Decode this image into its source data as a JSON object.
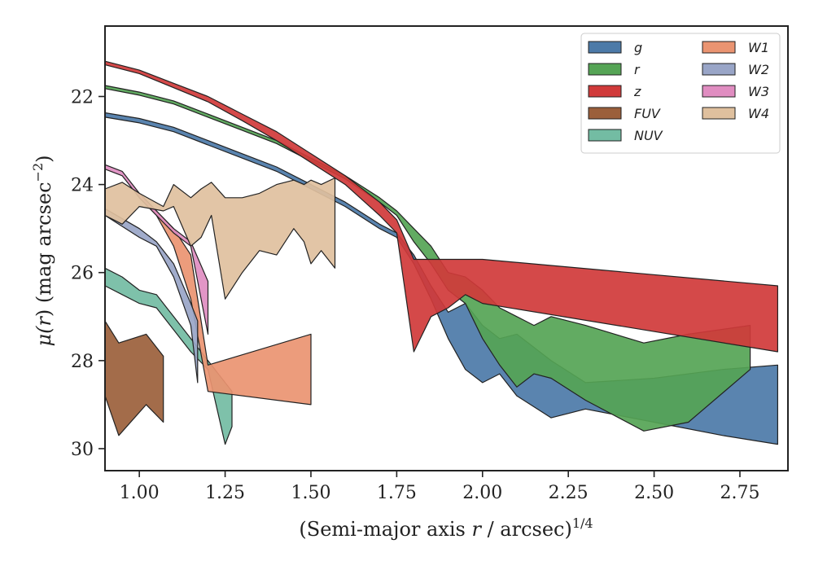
{
  "chart_data": {
    "type": "area",
    "xlabel_parts": [
      "(Semi-major axis ",
      "r",
      " / arcsec)",
      "1/4"
    ],
    "ylabel_parts": [
      "μ(",
      "r",
      ") (mag arcsec",
      "−2",
      ")"
    ],
    "xlim": [
      0.9,
      2.89
    ],
    "ylim": [
      30.5,
      20.4
    ],
    "y_inverted": true,
    "xticks": [
      1.0,
      1.25,
      1.5,
      1.75,
      2.0,
      2.25,
      2.5,
      2.75
    ],
    "xtick_labels": [
      "1.00",
      "1.25",
      "1.50",
      "1.75",
      "2.00",
      "2.25",
      "2.50",
      "2.75"
    ],
    "yticks": [
      22,
      24,
      26,
      28,
      30
    ],
    "ytick_labels": [
      "22",
      "24",
      "26",
      "28",
      "30"
    ],
    "grid": false,
    "legend": {
      "placement": "top-right",
      "columns": 2
    },
    "series": [
      {
        "name": "g",
        "color": "#4c7aa8",
        "x": [
          0.9,
          1.0,
          1.1,
          1.2,
          1.3,
          1.4,
          1.5,
          1.6,
          1.7,
          1.75,
          1.8,
          1.85,
          1.9,
          1.95,
          2.0,
          2.05,
          2.1,
          2.2,
          2.3,
          2.5,
          2.7,
          2.86
        ],
        "lower": [
          22.37,
          22.5,
          22.7,
          23.0,
          23.3,
          23.6,
          24.0,
          24.4,
          24.9,
          25.1,
          25.6,
          26.3,
          26.9,
          26.7,
          27.2,
          27.5,
          27.4,
          28.0,
          28.5,
          28.4,
          28.2,
          28.1
        ],
        "upper": [
          22.47,
          22.6,
          22.8,
          23.1,
          23.4,
          23.7,
          24.1,
          24.5,
          25.0,
          25.2,
          25.8,
          26.6,
          27.5,
          28.2,
          28.5,
          28.3,
          28.8,
          29.3,
          29.1,
          29.4,
          29.7,
          29.9
        ]
      },
      {
        "name": "r",
        "color": "#55a455",
        "x": [
          0.9,
          1.0,
          1.1,
          1.2,
          1.3,
          1.4,
          1.5,
          1.6,
          1.7,
          1.75,
          1.8,
          1.85,
          1.9,
          1.95,
          2.0,
          2.05,
          2.1,
          2.15,
          2.2,
          2.3,
          2.47,
          2.6,
          2.78
        ],
        "lower": [
          21.75,
          21.9,
          22.1,
          22.4,
          22.7,
          23.0,
          23.4,
          23.8,
          24.3,
          24.6,
          25.0,
          25.4,
          26.0,
          26.1,
          26.4,
          26.8,
          27.0,
          27.2,
          27.0,
          27.2,
          27.6,
          27.4,
          27.2
        ],
        "upper": [
          21.82,
          21.97,
          22.17,
          22.47,
          22.77,
          23.07,
          23.47,
          23.87,
          24.4,
          24.7,
          25.3,
          25.8,
          26.4,
          26.7,
          27.5,
          28.1,
          28.6,
          28.3,
          28.4,
          28.9,
          29.6,
          29.4,
          28.2
        ]
      },
      {
        "name": "z",
        "color": "#d03a3a",
        "x": [
          0.9,
          1.0,
          1.1,
          1.2,
          1.3,
          1.4,
          1.5,
          1.6,
          1.7,
          1.75,
          1.8,
          1.85,
          1.9,
          1.95,
          2.0,
          2.86
        ],
        "lower": [
          21.2,
          21.4,
          21.7,
          22.0,
          22.4,
          22.8,
          23.3,
          23.8,
          24.4,
          24.8,
          25.7,
          25.7,
          25.7,
          25.7,
          25.7,
          26.3
        ],
        "upper": [
          21.28,
          21.48,
          21.8,
          22.12,
          22.55,
          23.0,
          23.5,
          24.0,
          24.7,
          25.1,
          27.8,
          27.0,
          26.8,
          26.5,
          26.7,
          27.8
        ]
      },
      {
        "name": "FUV",
        "color": "#9b5f3b",
        "x": [
          0.9,
          0.94,
          1.02,
          1.07
        ],
        "lower": [
          27.1,
          27.6,
          27.4,
          27.9
        ],
        "upper": [
          28.8,
          29.7,
          29.0,
          29.4
        ]
      },
      {
        "name": "NUV",
        "color": "#73bca3",
        "x": [
          0.9,
          0.95,
          1.0,
          1.05,
          1.1,
          1.15,
          1.2,
          1.25,
          1.27
        ],
        "lower": [
          25.9,
          26.1,
          26.4,
          26.5,
          27.0,
          27.5,
          28.0,
          28.5,
          28.7
        ],
        "upper": [
          26.3,
          26.5,
          26.7,
          26.8,
          27.3,
          27.8,
          28.2,
          29.9,
          29.5
        ]
      },
      {
        "name": "W1",
        "color": "#ea9471",
        "x": [
          1.0,
          1.05,
          1.1,
          1.15,
          1.2,
          1.5
        ],
        "lower": [
          24.2,
          24.6,
          25.0,
          25.6,
          28.1,
          27.4
        ],
        "upper": [
          24.3,
          24.7,
          25.4,
          26.6,
          28.7,
          29.0
        ]
      },
      {
        "name": "W2",
        "color": "#99a5c7",
        "x": [
          0.9,
          1.0,
          1.05,
          1.1,
          1.15,
          1.17
        ],
        "lower": [
          24.55,
          25.0,
          25.3,
          25.8,
          26.7,
          27.1
        ],
        "upper": [
          24.7,
          25.2,
          25.4,
          26.1,
          27.2,
          28.5
        ]
      },
      {
        "name": "W3",
        "color": "#e08dc1",
        "x": [
          0.9,
          0.95,
          1.0,
          1.05,
          1.1,
          1.15,
          1.2
        ],
        "lower": [
          23.55,
          23.7,
          24.2,
          24.6,
          25.0,
          25.3,
          26.2
        ],
        "upper": [
          23.65,
          23.8,
          24.3,
          24.7,
          25.1,
          25.4,
          27.4
        ]
      },
      {
        "name": "W4",
        "color": "#dfc09e",
        "x": [
          0.9,
          0.95,
          1.0,
          1.07,
          1.1,
          1.15,
          1.18,
          1.21,
          1.25,
          1.3,
          1.35,
          1.4,
          1.45,
          1.48,
          1.5,
          1.53,
          1.57
        ],
        "lower": [
          24.1,
          23.95,
          24.2,
          24.5,
          24.0,
          24.3,
          24.1,
          23.95,
          24.3,
          24.3,
          24.2,
          24.0,
          23.9,
          24.0,
          23.9,
          24.0,
          23.85
        ],
        "upper": [
          24.7,
          24.9,
          24.5,
          24.6,
          24.5,
          25.4,
          25.2,
          24.7,
          26.6,
          26.0,
          25.5,
          25.6,
          25.0,
          25.3,
          25.8,
          25.5,
          25.9
        ]
      }
    ]
  }
}
